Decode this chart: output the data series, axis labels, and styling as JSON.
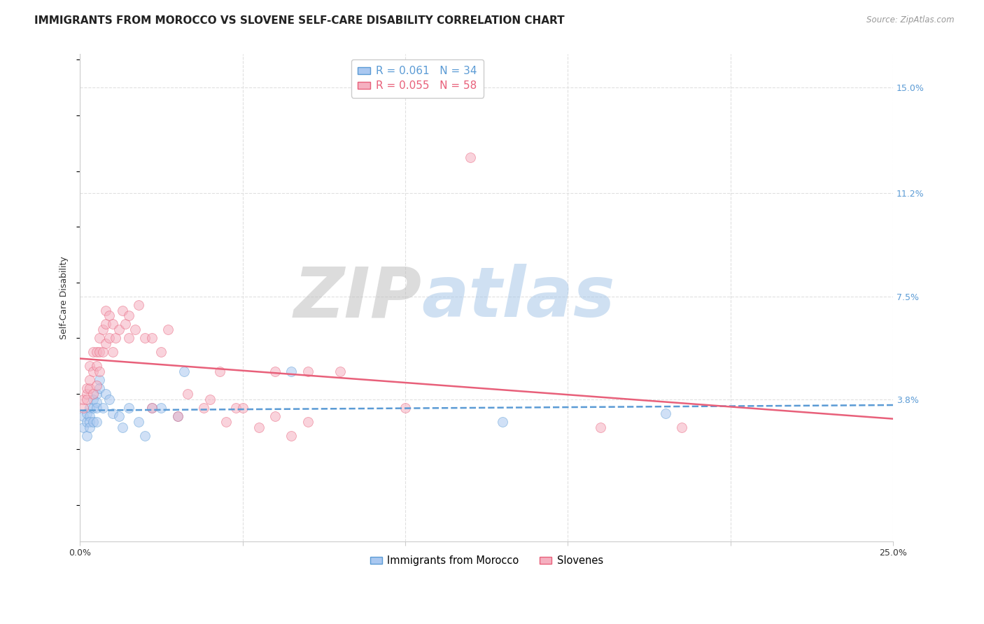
{
  "title": "IMMIGRANTS FROM MOROCCO VS SLOVENE SELF-CARE DISABILITY CORRELATION CHART",
  "source": "Source: ZipAtlas.com",
  "ylabel": "Self-Care Disability",
  "xlim": [
    0.0,
    0.25
  ],
  "ylim": [
    -0.013,
    0.162
  ],
  "xtick_positions": [
    0.0,
    0.05,
    0.1,
    0.15,
    0.2,
    0.25
  ],
  "xticklabels": [
    "0.0%",
    "",
    "",
    "",
    "",
    "25.0%"
  ],
  "ytick_positions": [
    0.038,
    0.075,
    0.112,
    0.15
  ],
  "ytick_labels": [
    "3.8%",
    "7.5%",
    "11.2%",
    "15.0%"
  ],
  "background_color": "#ffffff",
  "grid_color": "#e0e0e0",
  "watermark_zip_color": "#c8c8c8",
  "watermark_atlas_color": "#a8c8e8",
  "series": [
    {
      "name": "Immigrants from Morocco",
      "R": 0.061,
      "N": 34,
      "face_color": "#aac8f0",
      "edge_color": "#5b9bd5",
      "trend_color": "#5b9bd5",
      "trend_style": "--",
      "x": [
        0.001,
        0.001,
        0.002,
        0.002,
        0.002,
        0.003,
        0.003,
        0.003,
        0.003,
        0.004,
        0.004,
        0.004,
        0.005,
        0.005,
        0.005,
        0.005,
        0.006,
        0.006,
        0.007,
        0.008,
        0.009,
        0.01,
        0.012,
        0.013,
        0.015,
        0.018,
        0.02,
        0.022,
        0.025,
        0.03,
        0.032,
        0.065,
        0.13,
        0.18
      ],
      "y": [
        0.028,
        0.032,
        0.03,
        0.033,
        0.025,
        0.035,
        0.032,
        0.03,
        0.028,
        0.038,
        0.035,
        0.03,
        0.04,
        0.037,
        0.035,
        0.03,
        0.045,
        0.042,
        0.035,
        0.04,
        0.038,
        0.033,
        0.032,
        0.028,
        0.035,
        0.03,
        0.025,
        0.035,
        0.035,
        0.032,
        0.048,
        0.048,
        0.03,
        0.033
      ]
    },
    {
      "name": "Slovenes",
      "R": 0.055,
      "N": 58,
      "face_color": "#f5b0c0",
      "edge_color": "#e8607a",
      "trend_color": "#e8607a",
      "trend_style": "-",
      "x": [
        0.001,
        0.001,
        0.002,
        0.002,
        0.002,
        0.003,
        0.003,
        0.003,
        0.004,
        0.004,
        0.004,
        0.005,
        0.005,
        0.005,
        0.006,
        0.006,
        0.006,
        0.007,
        0.007,
        0.008,
        0.008,
        0.008,
        0.009,
        0.009,
        0.01,
        0.01,
        0.011,
        0.012,
        0.013,
        0.014,
        0.015,
        0.015,
        0.017,
        0.018,
        0.02,
        0.022,
        0.022,
        0.025,
        0.027,
        0.03,
        0.033,
        0.038,
        0.04,
        0.043,
        0.045,
        0.048,
        0.05,
        0.055,
        0.06,
        0.065,
        0.07,
        0.1,
        0.16,
        0.185,
        0.06,
        0.07,
        0.08,
        0.12
      ],
      "y": [
        0.035,
        0.038,
        0.04,
        0.042,
        0.038,
        0.042,
        0.045,
        0.05,
        0.04,
        0.048,
        0.055,
        0.043,
        0.055,
        0.05,
        0.048,
        0.055,
        0.06,
        0.055,
        0.063,
        0.058,
        0.065,
        0.07,
        0.06,
        0.068,
        0.055,
        0.065,
        0.06,
        0.063,
        0.07,
        0.065,
        0.06,
        0.068,
        0.063,
        0.072,
        0.06,
        0.06,
        0.035,
        0.055,
        0.063,
        0.032,
        0.04,
        0.035,
        0.038,
        0.048,
        0.03,
        0.035,
        0.035,
        0.028,
        0.032,
        0.025,
        0.03,
        0.035,
        0.028,
        0.028,
        0.048,
        0.048,
        0.048,
        0.125
      ]
    }
  ],
  "title_fontsize": 11,
  "axis_label_fontsize": 9,
  "tick_fontsize": 9,
  "scatter_size": 100,
  "scatter_alpha": 0.55,
  "trend_linewidth": 1.8
}
